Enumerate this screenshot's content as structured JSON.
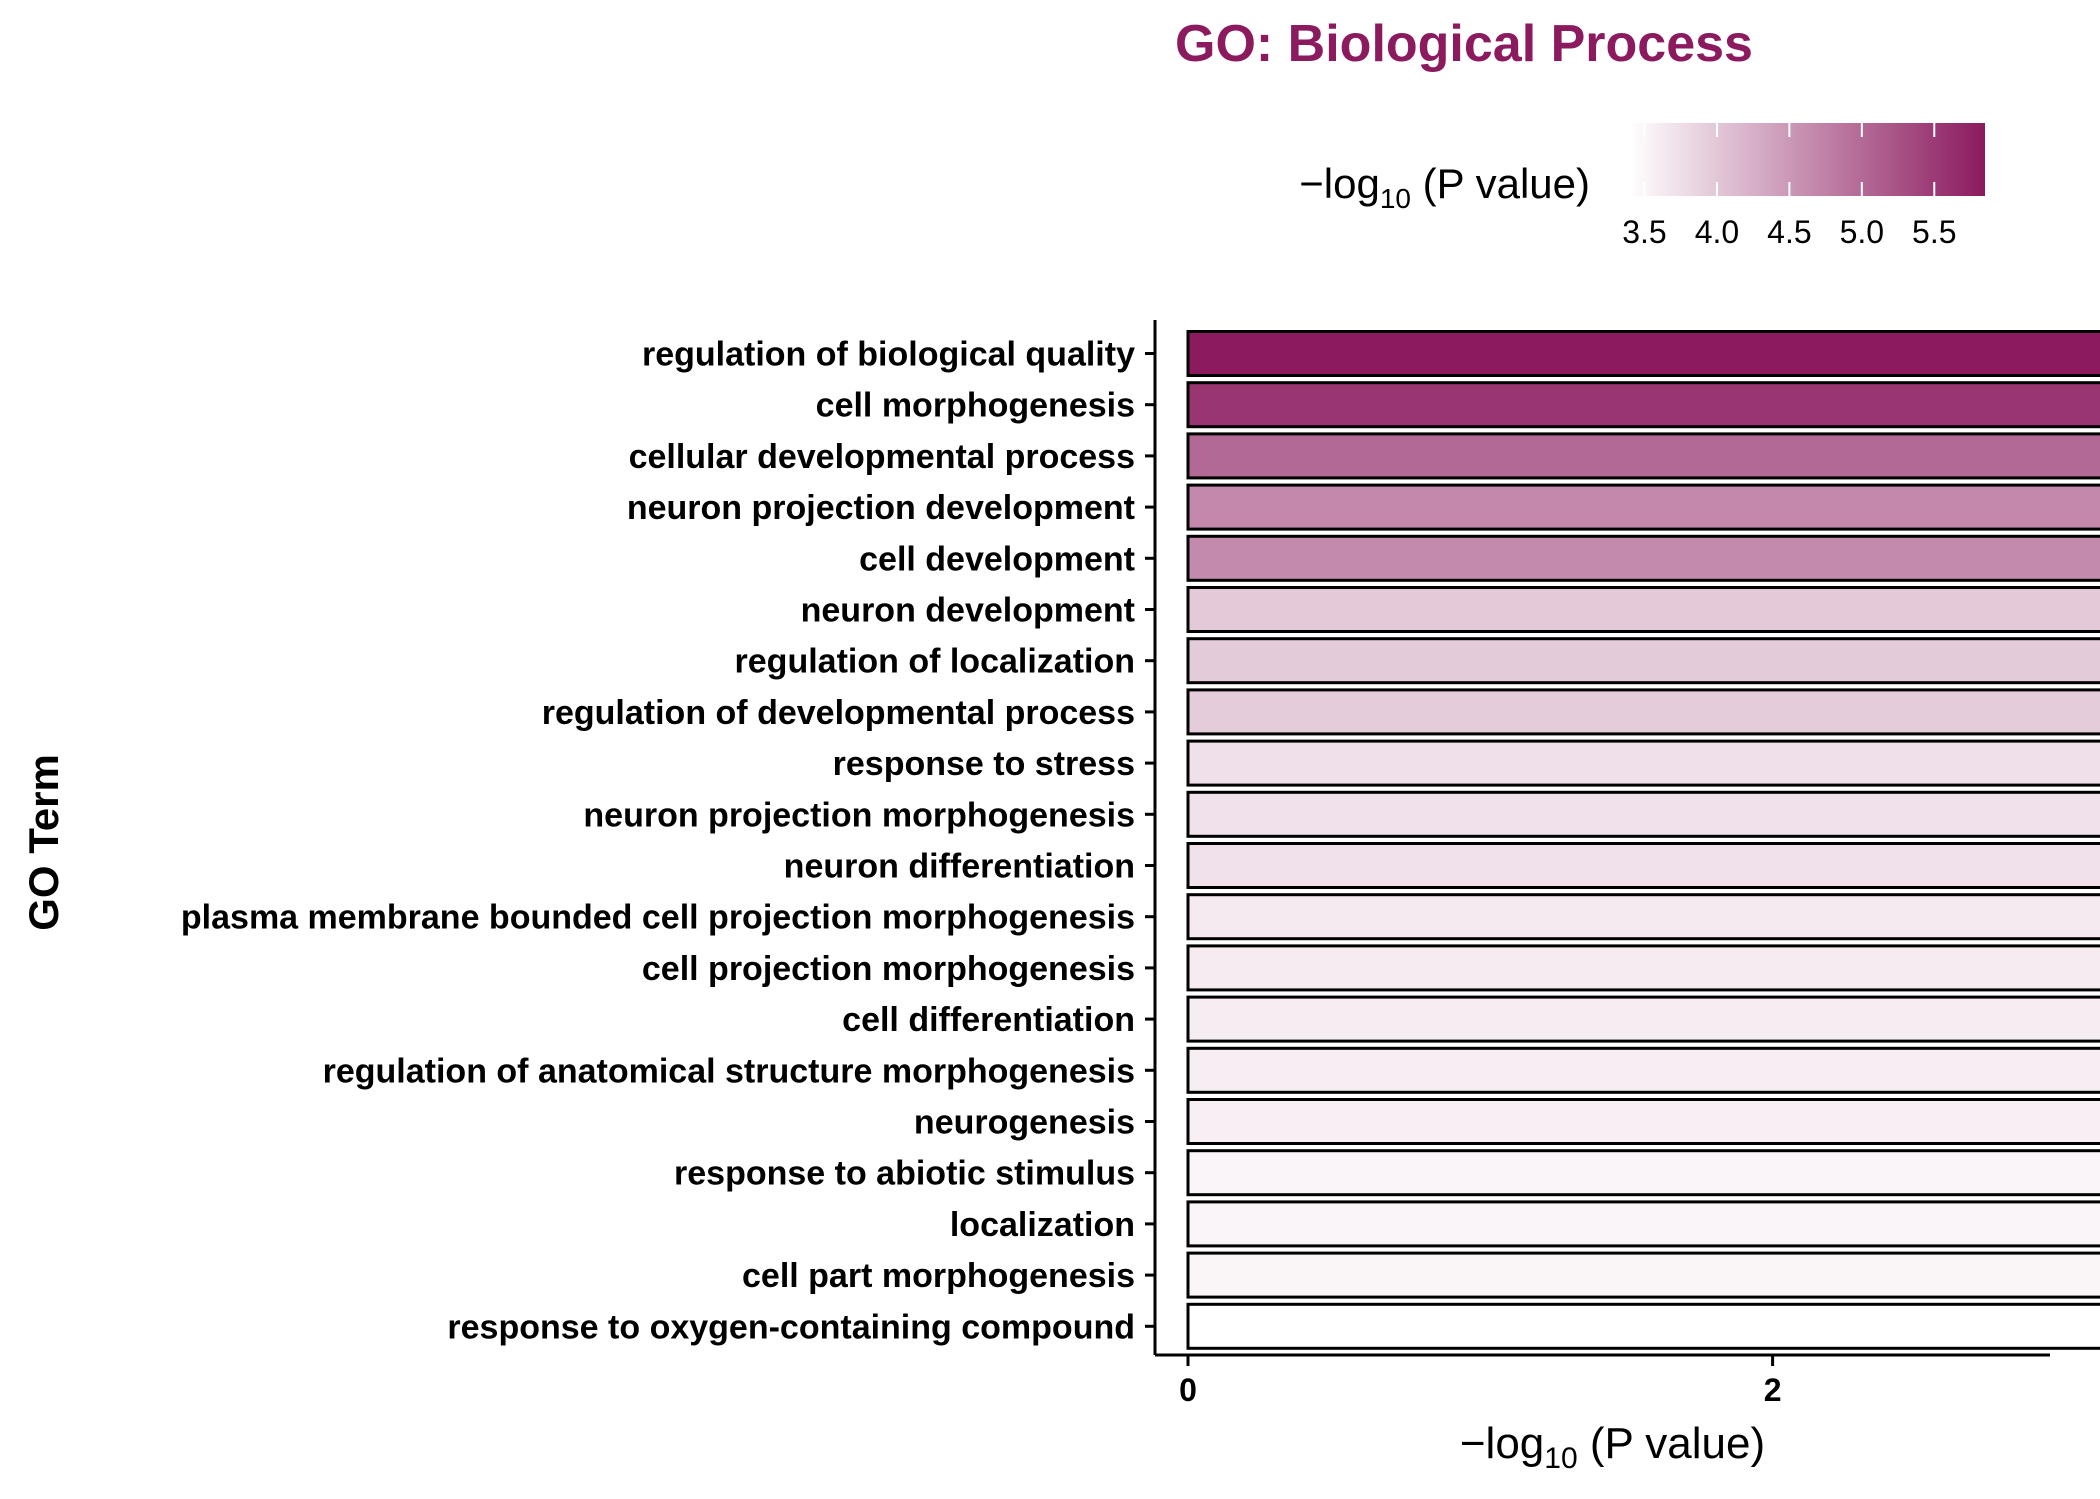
{
  "chart_data": {
    "type": "bar",
    "orientation": "horizontal",
    "title": "GO: Biological Process",
    "xlabel": {
      "prefix": "−log",
      "sub": "10",
      "suffix": " (P value)"
    },
    "ylabel": "GO Term",
    "xlim": [
      0,
      6.1
    ],
    "xticks": [
      "0",
      "2",
      "4",
      "6"
    ],
    "colors": {
      "title": "#8B1A5E",
      "low": "#FFFFFF",
      "high": "#8B1A5E",
      "stroke": "#000000"
    },
    "legend": {
      "placement": "top-right",
      "title": {
        "prefix": "−log",
        "sub": "10",
        "suffix": " (P value)"
      },
      "range": [
        3.4,
        5.85
      ],
      "ticks": [
        "3.5",
        "4.0",
        "4.5",
        "5.0",
        "5.5"
      ]
    },
    "categories": [
      "regulation of biological quality",
      "cell morphogenesis",
      "cellular developmental process",
      "neuron projection development",
      "cell development",
      "neuron development",
      "regulation of localization",
      "regulation of developmental process",
      "response to stress",
      "neuron projection morphogenesis",
      "neuron differentiation",
      "plasma membrane bounded cell projection morphogenesis",
      "cell projection morphogenesis",
      "cell differentiation",
      "regulation of anatomical structure morphogenesis",
      "neurogenesis",
      "response to abiotic stimulus",
      "localization",
      "cell part morphogenesis",
      "response to oxygen-containing compound"
    ],
    "values": [
      5.85,
      5.55,
      5.01,
      4.67,
      4.65,
      3.98,
      3.96,
      3.95,
      3.73,
      3.72,
      3.72,
      3.63,
      3.61,
      3.59,
      3.58,
      3.57,
      3.51,
      3.51,
      3.5,
      3.39
    ]
  }
}
